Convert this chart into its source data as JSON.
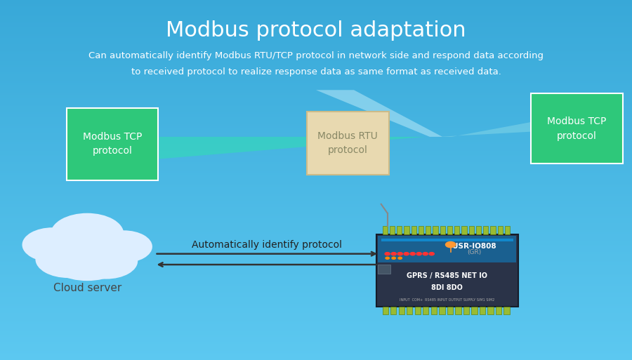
{
  "title": "Modbus protocol adaptation",
  "subtitle_line1": "Can automatically identify Modbus RTU/TCP protocol in network side and respond data according",
  "subtitle_line2": "to received protocol to realize response data as same format as received data.",
  "bg_color": "#4ab8e8",
  "bg_top": "#5cc8f0",
  "bg_bottom": "#3aabdc",
  "title_color": "#ffffff",
  "subtitle_color": "#ffffff",
  "box_left_label": "Modbus TCP\nprotocol",
  "box_left_color": "#2ec87a",
  "box_left_text_color": "#ffffff",
  "box_center_label": "Modbus RTU\nprotocol",
  "box_center_color": "#e8d9b0",
  "box_center_text_color": "#888866",
  "box_right_label": "Modbus TCP\nprotocol",
  "box_right_color": "#2ec87a",
  "box_right_text_color": "#ffffff",
  "cloud_color": "#e8f4ff",
  "cloud_label": "Cloud server",
  "arrow_label": "Automatically identify protocol",
  "device_label1": "USR-IO808",
  "device_label2": "(GR)",
  "device_label3": "GPRS / RS485 NET IO",
  "device_label4": "8DI 8DO"
}
